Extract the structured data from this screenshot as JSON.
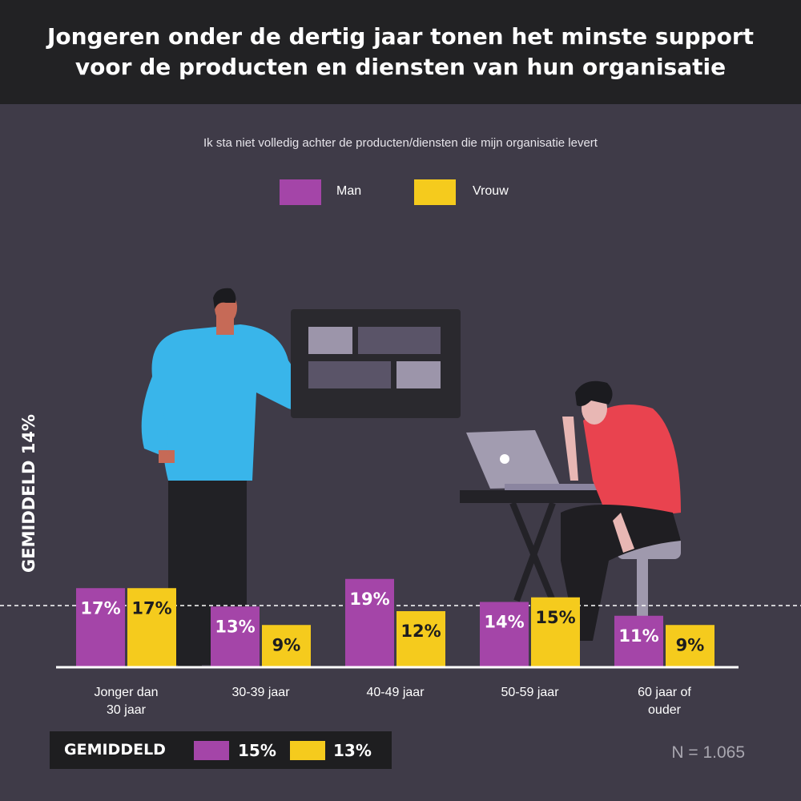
{
  "header": {
    "title": "Jongeren onder de dertig jaar tonen het minste support\nvoor de producten en diensten van hun organisatie"
  },
  "chart_data": {
    "type": "bar",
    "title": "Jongeren onder de dertig jaar tonen het minste support voor de producten en diensten van hun organisatie",
    "subtitle": "Ik sta niet volledig achter de producten/diensten die mijn organisatie levert",
    "categories": [
      "Jonger dan\n30 jaar",
      "30-39 jaar",
      "40-49 jaar",
      "50-59 jaar",
      "60 jaar of\nouder"
    ],
    "series": [
      {
        "name": "Man",
        "values": [
          17,
          13,
          19,
          14,
          11
        ],
        "labels": [
          "17%",
          "13%",
          "19%",
          "14%",
          "11%"
        ],
        "color": "#a445a8"
      },
      {
        "name": "Vrouw",
        "values": [
          17,
          9,
          12,
          15,
          9
        ],
        "labels": [
          "17%",
          "9%",
          "12%",
          "15%",
          "9%"
        ],
        "color": "#f5cb1d"
      }
    ],
    "average_line": {
      "value": 14,
      "label": "GEMIDDELD 14%"
    },
    "ylim": [
      0,
      25
    ],
    "legend": "top-center"
  },
  "legend": {
    "man": "Man",
    "vrouw": "Vrouw"
  },
  "averages": {
    "label": "GEMIDDELD",
    "man": "15%",
    "vrouw": "13%"
  },
  "sample": "N = 1.065",
  "colors": {
    "background": "#3f3b48",
    "header": "#222224",
    "man": "#a445a8",
    "vrouw": "#f5cb1d"
  }
}
